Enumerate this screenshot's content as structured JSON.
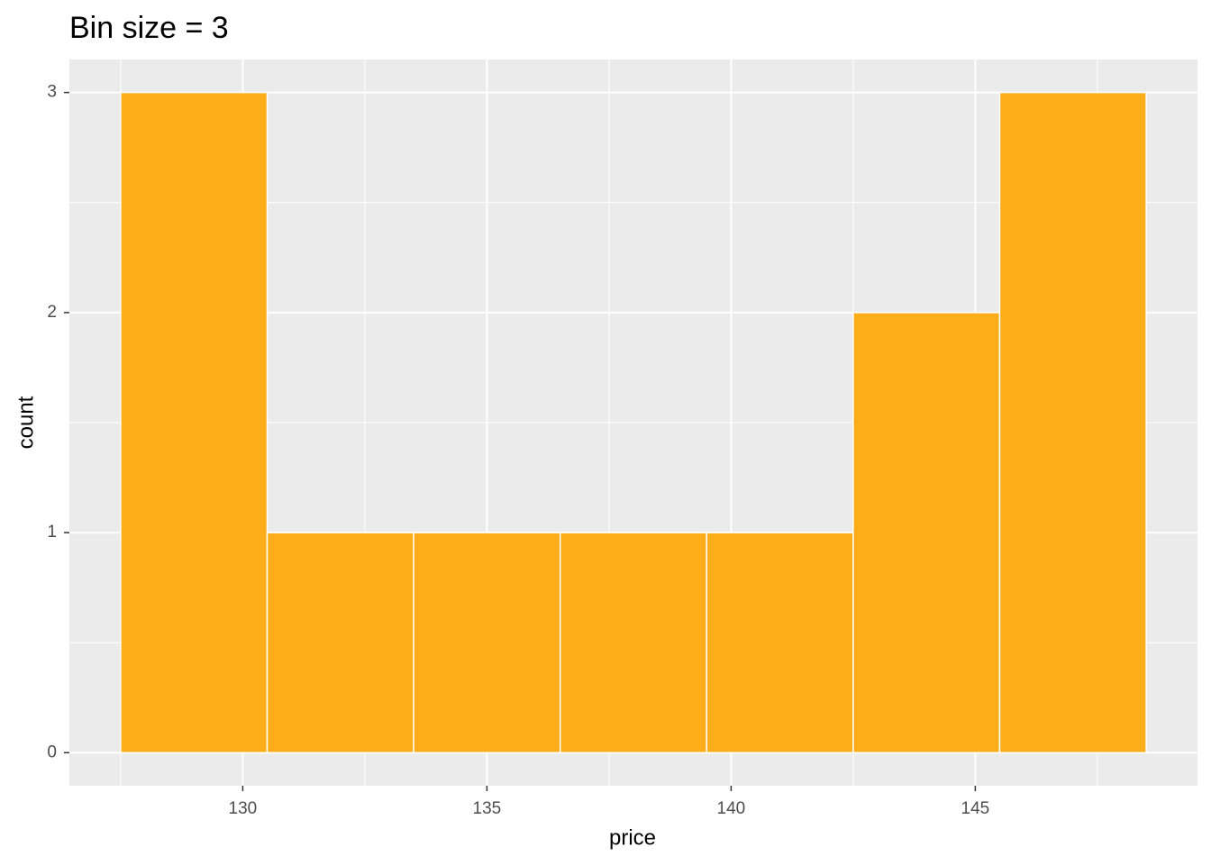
{
  "chart_data": {
    "type": "histogram",
    "title": "Bin size = 3",
    "x_label": "price",
    "y_label": "count",
    "bins": [
      127.5,
      130.5,
      133.5,
      136.5,
      139.5,
      142.5,
      145.5,
      148.5
    ],
    "values": [
      3,
      1,
      1,
      1,
      1,
      2,
      3
    ],
    "color": "#fdac1a",
    "xlim": [
      126.45,
      149.55
    ],
    "xticks": [
      130,
      135,
      140,
      145
    ],
    "ylim": [
      -0.15,
      3.15
    ],
    "yticks": [
      0,
      1,
      2,
      3
    ],
    "grid": true
  }
}
